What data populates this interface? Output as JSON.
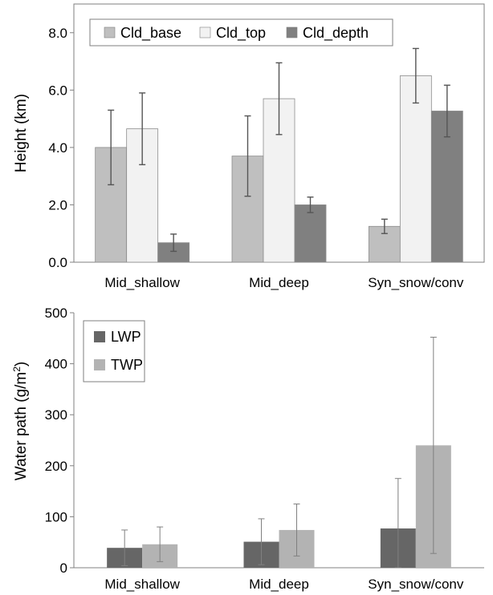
{
  "chart_data": [
    {
      "type": "bar",
      "ylabel": "Height (km)",
      "ylim": [
        0,
        9.0
      ],
      "yticks": [
        "0.0",
        "2.0",
        "4.0",
        "6.0",
        "8.0"
      ],
      "ytick_values": [
        0,
        2,
        4,
        6,
        8
      ],
      "categories": [
        "Mid_shallow",
        "Mid_deep",
        "Syn_snow/conv"
      ],
      "legend_position": "top",
      "grid": false,
      "series": [
        {
          "name": "Cld_base",
          "color": "#bfbfbf",
          "values": [
            4.0,
            3.7,
            1.25
          ],
          "error": [
            1.3,
            1.4,
            0.25
          ]
        },
        {
          "name": "Cld_top",
          "color": "#f2f2f2",
          "values": [
            4.65,
            5.7,
            6.5
          ],
          "error": [
            1.25,
            1.25,
            0.95
          ]
        },
        {
          "name": "Cld_depth",
          "color": "#808080",
          "values": [
            0.68,
            2.0,
            5.27
          ],
          "error": [
            0.3,
            0.27,
            0.9
          ]
        }
      ]
    },
    {
      "type": "bar",
      "ylabel_main": "Water path (g/m",
      "ylabel_sup": "2",
      "ylabel_close": ")",
      "ylim": [
        0,
        500
      ],
      "yticks": [
        "0",
        "100",
        "200",
        "300",
        "400",
        "500"
      ],
      "ytick_values": [
        0,
        100,
        200,
        300,
        400,
        500
      ],
      "categories": [
        "Mid_shallow",
        "Mid_deep",
        "Syn_snow/conv"
      ],
      "legend_position": "top-left",
      "grid": false,
      "series": [
        {
          "name": "LWP",
          "color": "#666666",
          "values": [
            39,
            51,
            77
          ],
          "error": [
            35,
            45,
            98
          ]
        },
        {
          "name": "TWP",
          "color": "#b3b3b3",
          "values": [
            46,
            74,
            240
          ],
          "error": [
            34,
            51,
            212
          ]
        }
      ]
    }
  ]
}
